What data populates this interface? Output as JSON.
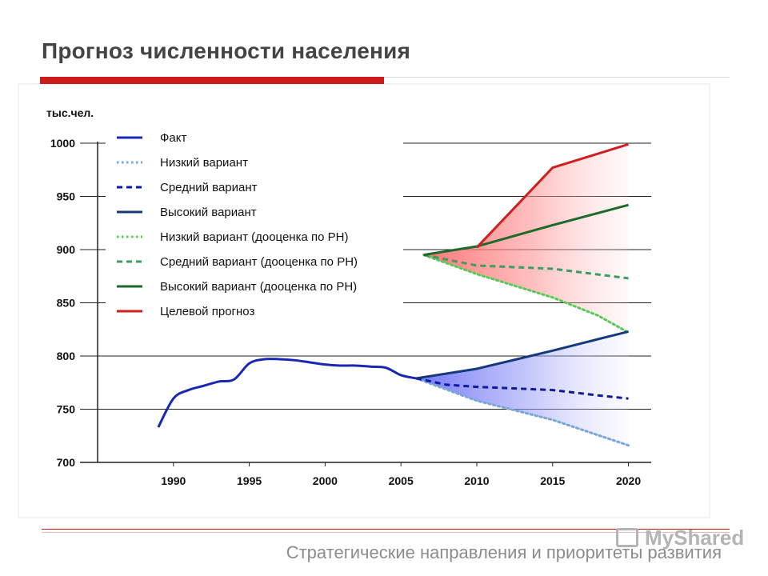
{
  "slide": {
    "title": "Прогноз численности населения",
    "footer": "Стратегические направления и приоритеты развития",
    "watermark": "MyShared"
  },
  "colors": {
    "fact": "#1a27b5",
    "low": "#7aa6d8",
    "mid": "#0f1aa2",
    "high": "#14397c",
    "low_rn": "#5cc85c",
    "mid_rn": "#3e9a66",
    "high_rn": "#1e6a2a",
    "target": "#d11f1f",
    "highlight_tick": "#d11f1f",
    "title_rule": "#cc1b1b"
  },
  "chart_data": {
    "type": "line",
    "title": "Прогноз численности населения",
    "ylabel": "тыс.чел.",
    "xlabel": "",
    "xlim": [
      1985,
      2021.5
    ],
    "ylim": [
      700,
      1000
    ],
    "x_ticks": [
      1990,
      1995,
      2000,
      2005,
      2010,
      2015,
      2020
    ],
    "y_ticks": [
      700,
      750,
      800,
      850,
      900,
      950,
      1000
    ],
    "y_tick_highlight": 1000,
    "grid": "horizontal",
    "legend_position": "top-left",
    "series": [
      {
        "name": "Факт",
        "style": "solid",
        "color_key": "fact",
        "x": [
          1989,
          1990,
          1991,
          1992,
          1993,
          1994,
          1995,
          1996,
          1997,
          1998,
          1999,
          2000,
          2001,
          2002,
          2003,
          2004,
          2005,
          2006
        ],
        "y": [
          733,
          760,
          768,
          772,
          776,
          778,
          793,
          797,
          797,
          796,
          794,
          792,
          791,
          791,
          790,
          789,
          782,
          779
        ]
      },
      {
        "name": "Низкий вариант",
        "style": "dotted",
        "color_key": "low",
        "x": [
          2006,
          2010,
          2015,
          2020
        ],
        "y": [
          779,
          758,
          740,
          716
        ]
      },
      {
        "name": "Средний вариант",
        "style": "dashed",
        "color_key": "mid",
        "x": [
          2006,
          2008,
          2010,
          2015,
          2018,
          2020
        ],
        "y": [
          779,
          773,
          771,
          768,
          763,
          760
        ]
      },
      {
        "name": "Высокий вариант",
        "style": "solid",
        "color_key": "high",
        "x": [
          2006,
          2010,
          2015,
          2020
        ],
        "y": [
          779,
          788,
          805,
          823
        ]
      },
      {
        "name": "Низкий вариант (дооценка по РН)",
        "style": "dotted",
        "color_key": "low_rn",
        "x": [
          2006.5,
          2010,
          2015,
          2018,
          2020
        ],
        "y": [
          895,
          877,
          855,
          838,
          822
        ]
      },
      {
        "name": "Средний вариант (дооценка по РН)",
        "style": "dashed",
        "color_key": "mid_rn",
        "x": [
          2006.5,
          2010,
          2015,
          2020
        ],
        "y": [
          895,
          885,
          882,
          873
        ]
      },
      {
        "name": "Высокий вариант (дооценка по РН)",
        "style": "solid",
        "color_key": "high_rn",
        "x": [
          2006.5,
          2010,
          2015,
          2020
        ],
        "y": [
          895,
          903,
          923,
          942
        ]
      },
      {
        "name": "Целевой прогноз",
        "style": "solid",
        "color_key": "target",
        "x": [
          2010,
          2015,
          2020
        ],
        "y": [
          902,
          977,
          999
        ]
      }
    ],
    "bands": [
      {
        "name": "Целевой диапазон",
        "upper": "Целевой прогноз",
        "lower": "Низкий вариант (дооценка по РН)",
        "color_key": "target"
      },
      {
        "name": "Диапазон прогноза",
        "upper": "Высокий вариант",
        "lower": "Низкий вариант",
        "color_key": "fact"
      }
    ]
  }
}
